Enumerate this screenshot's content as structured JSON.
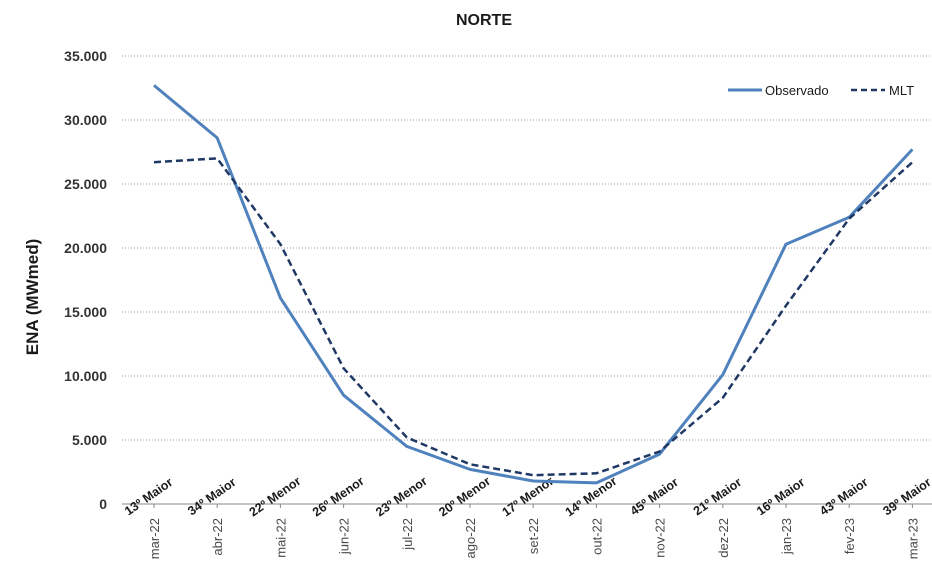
{
  "chart_data": {
    "type": "line",
    "title": "NORTE",
    "ylabel": "ENA (MWmed)",
    "xlabel": "",
    "ylim": [
      0,
      35000
    ],
    "yticks": [
      0,
      5000,
      10000,
      15000,
      20000,
      25000,
      30000,
      35000
    ],
    "ytick_labels": [
      "0",
      "5.000",
      "10.000",
      "15.000",
      "20.000",
      "25.000",
      "30.000",
      "35.000"
    ],
    "categories": [
      "mar-22",
      "abr-22",
      "mai-22",
      "jun-22",
      "jul-22",
      "ago-22",
      "set-22",
      "out-22",
      "nov-22",
      "dez-22",
      "jan-23",
      "fev-23",
      "mar-23"
    ],
    "rank_labels": [
      "13º Maior",
      "34º Maior",
      "22º Menor",
      "26º Menor",
      "23º Menor",
      "20º Menor",
      "17º Menor",
      "14º Menor",
      "45º Maior",
      "21º Maior",
      "16º Maior",
      "43º Maior",
      "39º Maior"
    ],
    "grid": true,
    "legend_position": "top-right",
    "series": [
      {
        "name": "Observado",
        "style": "solid",
        "color": "#4f81bd",
        "values": [
          32700,
          28600,
          16100,
          8500,
          4500,
          2700,
          1800,
          1650,
          3900,
          10100,
          20300,
          22400,
          27700
        ]
      },
      {
        "name": "MLT",
        "style": "dashed",
        "color": "#1f3864",
        "values": [
          26700,
          27000,
          20300,
          10600,
          5200,
          3100,
          2250,
          2400,
          4100,
          8300,
          15500,
          22300,
          26700
        ]
      }
    ]
  }
}
